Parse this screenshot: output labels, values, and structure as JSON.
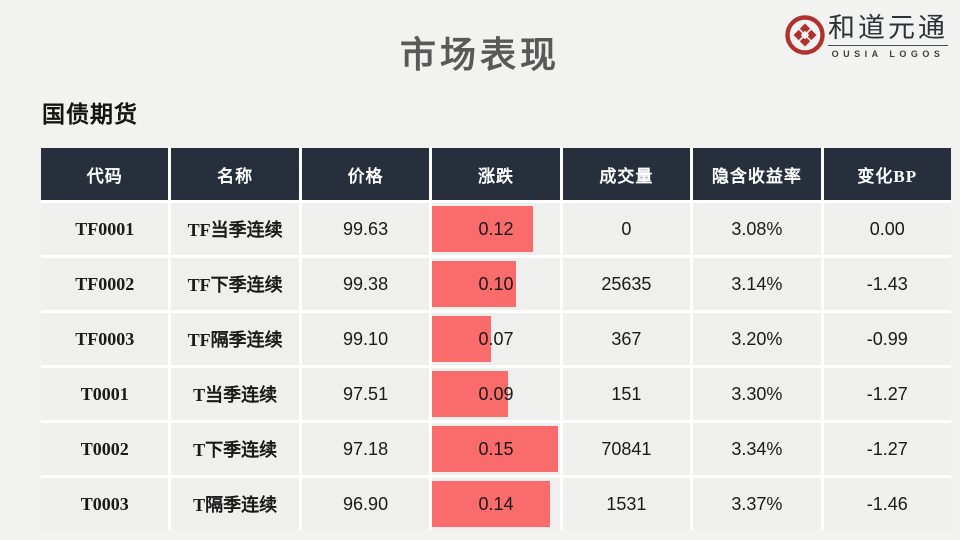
{
  "slide": {
    "title": "市场表现",
    "section_title": "国债期货"
  },
  "logo": {
    "name_text": "和道元通",
    "subtext": "OUSIA LOGOS",
    "coin_color": "#B0322F"
  },
  "colors": {
    "page_bg": "#F2F2F1",
    "header_bg": "#272F3C",
    "row_bg": "#EFEFEE",
    "change_bar": "#FA6B6B",
    "title_text": "#595959"
  },
  "table": {
    "headers": [
      "代码",
      "名称",
      "价格",
      "涨跌",
      "成交量",
      "隐含收益率",
      "变化BP"
    ],
    "change_bar_full_scale": 0.1515,
    "rows": [
      {
        "code": "TF0001",
        "name": "TF当季连续",
        "price": "99.63",
        "change": 0.12,
        "volume": "0",
        "implied_yield": "3.08%",
        "change_bp": "0.00"
      },
      {
        "code": "TF0002",
        "name": "TF下季连续",
        "price": "99.38",
        "change": 0.1,
        "volume": "25635",
        "implied_yield": "3.14%",
        "change_bp": "-1.43"
      },
      {
        "code": "TF0003",
        "name": "TF隔季连续",
        "price": "99.10",
        "change": 0.07,
        "volume": "367",
        "implied_yield": "3.20%",
        "change_bp": "-0.99"
      },
      {
        "code": "T0001",
        "name": "T当季连续",
        "price": "97.51",
        "change": 0.09,
        "volume": "151",
        "implied_yield": "3.30%",
        "change_bp": "-1.27"
      },
      {
        "code": "T0002",
        "name": "T下季连续",
        "price": "97.18",
        "change": 0.15,
        "volume": "70841",
        "implied_yield": "3.34%",
        "change_bp": "-1.27"
      },
      {
        "code": "T0003",
        "name": "T隔季连续",
        "price": "96.90",
        "change": 0.14,
        "volume": "1531",
        "implied_yield": "3.37%",
        "change_bp": "-1.46"
      }
    ]
  }
}
